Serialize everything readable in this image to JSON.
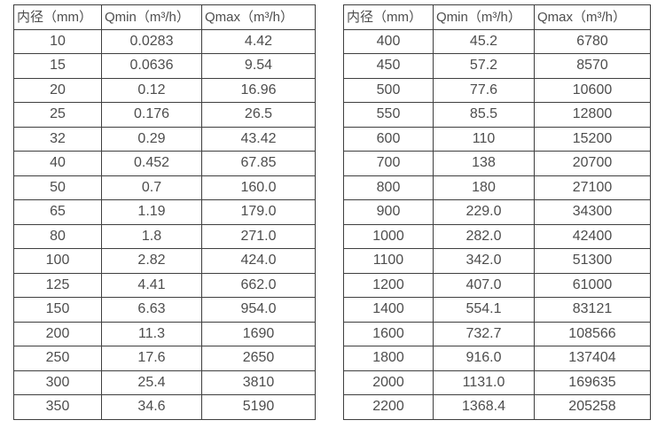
{
  "page": {
    "background_color": "#ffffff",
    "text_color": "#4d4d4d",
    "border_color": "#3f3f3f"
  },
  "chart_data": [
    {
      "type": "table",
      "name": "flow-rate-table-small-diameters",
      "columns": [
        "内径（mm）",
        "Qmin（m³/h）",
        "Qmax（m³/h）"
      ],
      "rows": [
        [
          "10",
          "0.0283",
          "4.42"
        ],
        [
          "15",
          "0.0636",
          "9.54"
        ],
        [
          "20",
          "0.12",
          "16.96"
        ],
        [
          "25",
          "0.176",
          "26.5"
        ],
        [
          "32",
          "0.29",
          "43.42"
        ],
        [
          "40",
          "0.452",
          "67.85"
        ],
        [
          "50",
          "0.7",
          "160.0"
        ],
        [
          "65",
          "1.19",
          "179.0"
        ],
        [
          "80",
          "1.8",
          "271.0"
        ],
        [
          "100",
          "2.82",
          "424.0"
        ],
        [
          "125",
          "4.41",
          "662.0"
        ],
        [
          "150",
          "6.63",
          "954.0"
        ],
        [
          "200",
          "11.3",
          "1690"
        ],
        [
          "250",
          "17.6",
          "2650"
        ],
        [
          "300",
          "25.4",
          "3810"
        ],
        [
          "350",
          "34.6",
          "5190"
        ]
      ]
    },
    {
      "type": "table",
      "name": "flow-rate-table-large-diameters",
      "columns": [
        "内径（mm）",
        "Qmin（m³/h）",
        "Qmax（m³/h）"
      ],
      "rows": [
        [
          "400",
          "45.2",
          "6780"
        ],
        [
          "450",
          "57.2",
          "8570"
        ],
        [
          "500",
          "77.6",
          "10600"
        ],
        [
          "550",
          "85.5",
          "12800"
        ],
        [
          "600",
          "110",
          "15200"
        ],
        [
          "700",
          "138",
          "20700"
        ],
        [
          "800",
          "180",
          "27100"
        ],
        [
          "900",
          "229.0",
          "34300"
        ],
        [
          "1000",
          "282.0",
          "42400"
        ],
        [
          "1100",
          "342.0",
          "51300"
        ],
        [
          "1200",
          "407.0",
          "61000"
        ],
        [
          "1400",
          "554.1",
          "83121"
        ],
        [
          "1600",
          "732.7",
          "108566"
        ],
        [
          "1800",
          "916.0",
          "137404"
        ],
        [
          "2000",
          "1131.0",
          "169635"
        ],
        [
          "2200",
          "1368.4",
          "205258"
        ]
      ]
    }
  ]
}
